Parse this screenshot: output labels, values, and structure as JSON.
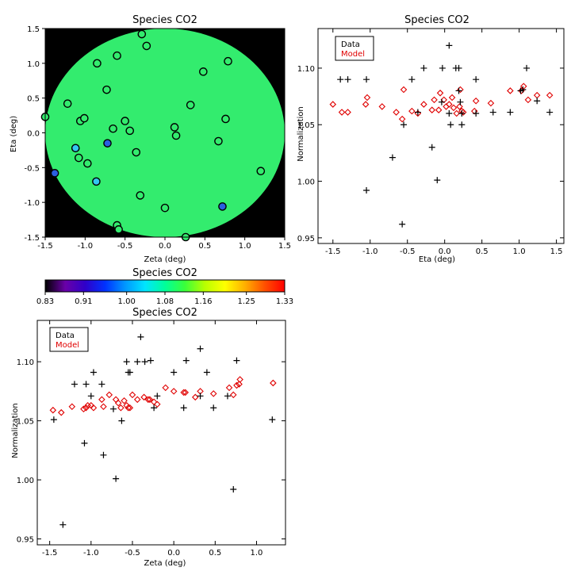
{
  "figure": {
    "title_map": "Species CO2",
    "title_eta": "Species CO2",
    "title_colorbar": "Species CO2",
    "title_zeta": "Species CO2",
    "legend_data": "Data",
    "legend_model": "Model",
    "model_color": "#e00000",
    "data_color": "#000000"
  },
  "chart_data": [
    {
      "id": "map",
      "type": "scatter",
      "title": "Species CO2",
      "xlabel": "Zeta (deg)",
      "ylabel": "Eta (deg)",
      "xlim": [
        -1.5,
        1.5
      ],
      "ylim": [
        -1.5,
        1.5
      ],
      "xticks": [
        "-1.5",
        "-1.0",
        "-0.5",
        "0.0",
        "0.5",
        "1.0",
        "1.5"
      ],
      "yticks": [
        "-1.5",
        "-1.0",
        "-0.5",
        "0.0",
        "0.5",
        "1.0",
        "1.5"
      ],
      "background": "#000000",
      "disk_color": "#33ec6e",
      "points": [
        {
          "x": -1.5,
          "y": 0.23,
          "c": "#33ec6e"
        },
        {
          "x": -1.38,
          "y": -0.58,
          "c": "#2a5fe0"
        },
        {
          "x": -1.22,
          "y": 0.42,
          "c": "#33ec6e"
        },
        {
          "x": -1.12,
          "y": -0.22,
          "c": "#33c7f0"
        },
        {
          "x": -1.08,
          "y": -0.36,
          "c": "#33ec6e"
        },
        {
          "x": -1.06,
          "y": 0.17,
          "c": "#33ec6e"
        },
        {
          "x": -1.01,
          "y": 0.21,
          "c": "#33ec6e"
        },
        {
          "x": -0.97,
          "y": -0.44,
          "c": "#33ec6e"
        },
        {
          "x": -0.85,
          "y": 1.0,
          "c": "#33ec6e"
        },
        {
          "x": -0.86,
          "y": -0.7,
          "c": "#33c7f0"
        },
        {
          "x": -0.73,
          "y": 0.62,
          "c": "#33ec6e"
        },
        {
          "x": -0.72,
          "y": -0.15,
          "c": "#2a5fe0"
        },
        {
          "x": -0.65,
          "y": 0.06,
          "c": "#33ec6e"
        },
        {
          "x": -0.6,
          "y": 1.11,
          "c": "#33ec6e"
        },
        {
          "x": -0.6,
          "y": -1.33,
          "c": "#33ec6e"
        },
        {
          "x": -0.58,
          "y": -1.39,
          "c": "#33ec6e"
        },
        {
          "x": -0.5,
          "y": 0.17,
          "c": "#33ec6e"
        },
        {
          "x": -0.44,
          "y": 0.03,
          "c": "#33ec6e"
        },
        {
          "x": -0.36,
          "y": -0.28,
          "c": "#33ec6e"
        },
        {
          "x": -0.29,
          "y": 1.42,
          "c": "#33ec6e"
        },
        {
          "x": -0.23,
          "y": 1.25,
          "c": "#33ec6e"
        },
        {
          "x": -0.31,
          "y": -0.9,
          "c": "#33ec6e"
        },
        {
          "x": 0.0,
          "y": -1.08,
          "c": "#33ec6e"
        },
        {
          "x": 0.12,
          "y": 0.08,
          "c": "#33ec6e"
        },
        {
          "x": 0.14,
          "y": -0.04,
          "c": "#33ec6e"
        },
        {
          "x": 0.32,
          "y": 0.4,
          "c": "#33ec6e"
        },
        {
          "x": 0.26,
          "y": -1.5,
          "c": "#33ec6e"
        },
        {
          "x": 0.48,
          "y": 0.88,
          "c": "#33ec6e"
        },
        {
          "x": 0.67,
          "y": -0.12,
          "c": "#33ec6e"
        },
        {
          "x": 0.72,
          "y": -1.06,
          "c": "#2a5fe0"
        },
        {
          "x": 0.76,
          "y": 0.2,
          "c": "#33ec6e"
        },
        {
          "x": 0.79,
          "y": 1.03,
          "c": "#33ec6e"
        },
        {
          "x": 1.2,
          "y": -0.55,
          "c": "#33ec6e"
        }
      ]
    },
    {
      "id": "eta",
      "type": "scatter",
      "title": "Species CO2",
      "xlabel": "Eta (deg)",
      "ylabel": "Normalization",
      "xlim": [
        -1.7,
        1.6
      ],
      "ylim": [
        0.945,
        1.135
      ],
      "xticks": [
        -1.5,
        -1.0,
        -0.5,
        0.0,
        0.5,
        1.0,
        1.5
      ],
      "yticks": [
        0.95,
        1.0,
        1.05,
        1.1
      ],
      "legend": "top-left",
      "data": [
        [
          -1.4,
          1.09
        ],
        [
          -1.3,
          1.09
        ],
        [
          -1.05,
          1.09
        ],
        [
          -1.05,
          0.992
        ],
        [
          -0.7,
          1.021
        ],
        [
          -0.57,
          0.962
        ],
        [
          -0.55,
          1.05
        ],
        [
          -0.44,
          1.09
        ],
        [
          -0.36,
          1.061
        ],
        [
          -0.28,
          1.1
        ],
        [
          -0.17,
          1.03
        ],
        [
          -0.1,
          1.001
        ],
        [
          -0.04,
          1.07
        ],
        [
          -0.03,
          1.1
        ],
        [
          0.06,
          1.12
        ],
        [
          0.06,
          1.06
        ],
        [
          0.08,
          1.05
        ],
        [
          0.15,
          1.1
        ],
        [
          0.19,
          1.1
        ],
        [
          0.19,
          1.08
        ],
        [
          0.21,
          1.07
        ],
        [
          0.23,
          1.05
        ],
        [
          0.23,
          1.06
        ],
        [
          0.42,
          1.06
        ],
        [
          0.42,
          1.09
        ],
        [
          0.65,
          1.061
        ],
        [
          0.88,
          1.061
        ],
        [
          1.02,
          1.08
        ],
        [
          1.05,
          1.081
        ],
        [
          1.1,
          1.1
        ],
        [
          1.24,
          1.071
        ],
        [
          1.41,
          1.061
        ]
      ],
      "model": [
        [
          -1.5,
          1.068
        ],
        [
          -1.38,
          1.061
        ],
        [
          -1.3,
          1.061
        ],
        [
          -1.06,
          1.068
        ],
        [
          -1.04,
          1.074
        ],
        [
          -0.84,
          1.066
        ],
        [
          -0.65,
          1.061
        ],
        [
          -0.57,
          1.055
        ],
        [
          -0.55,
          1.081
        ],
        [
          -0.44,
          1.062
        ],
        [
          -0.36,
          1.06
        ],
        [
          -0.28,
          1.068
        ],
        [
          -0.17,
          1.063
        ],
        [
          -0.14,
          1.072
        ],
        [
          -0.08,
          1.063
        ],
        [
          -0.06,
          1.078
        ],
        [
          -0.01,
          1.072
        ],
        [
          0.02,
          1.066
        ],
        [
          0.06,
          1.068
        ],
        [
          0.1,
          1.074
        ],
        [
          0.12,
          1.065
        ],
        [
          0.16,
          1.06
        ],
        [
          0.2,
          1.066
        ],
        [
          0.21,
          1.081
        ],
        [
          0.23,
          1.062
        ],
        [
          0.25,
          1.061
        ],
        [
          0.4,
          1.062
        ],
        [
          0.42,
          1.071
        ],
        [
          0.62,
          1.069
        ],
        [
          0.88,
          1.08
        ],
        [
          1.03,
          1.08
        ],
        [
          1.06,
          1.084
        ],
        [
          1.12,
          1.072
        ],
        [
          1.24,
          1.076
        ],
        [
          1.41,
          1.076
        ]
      ]
    },
    {
      "id": "colorbar",
      "type": "heatmap",
      "title": "Species CO2",
      "range": [
        0.83,
        1.33
      ],
      "ticks": [
        "0.83",
        "0.91",
        "1.00",
        "1.08",
        "1.16",
        "1.25",
        "1.33"
      ],
      "colormap": [
        "#000000",
        "#6a00a8",
        "#2f00c9",
        "#0032ff",
        "#0096ff",
        "#00e5ff",
        "#00ff9a",
        "#3aff3a",
        "#b8ff00",
        "#ffff00",
        "#ffb000",
        "#ff5000",
        "#ff0000"
      ]
    },
    {
      "id": "zeta",
      "type": "scatter",
      "title": "Species CO2",
      "xlabel": "Zeta (deg)",
      "ylabel": "Normalization",
      "xlim": [
        -1.65,
        1.35
      ],
      "ylim": [
        0.945,
        1.135
      ],
      "xticks": [
        -1.5,
        -1.0,
        -0.5,
        0.0,
        0.5,
        1.0
      ],
      "yticks": [
        0.95,
        1.0,
        1.05,
        1.1
      ],
      "legend": "top-left",
      "data": [
        [
          -1.45,
          1.051
        ],
        [
          -1.34,
          0.962
        ],
        [
          -1.2,
          1.081
        ],
        [
          -1.08,
          1.031
        ],
        [
          -1.06,
          1.081
        ],
        [
          -1.0,
          1.071
        ],
        [
          -0.97,
          1.091
        ],
        [
          -0.87,
          1.081
        ],
        [
          -0.85,
          1.021
        ],
        [
          -0.73,
          1.06
        ],
        [
          -0.7,
          1.001
        ],
        [
          -0.63,
          1.05
        ],
        [
          -0.57,
          1.1
        ],
        [
          -0.55,
          1.091
        ],
        [
          -0.53,
          1.091
        ],
        [
          -0.44,
          1.1
        ],
        [
          -0.4,
          1.121
        ],
        [
          -0.35,
          1.1
        ],
        [
          -0.28,
          1.101
        ],
        [
          -0.24,
          1.061
        ],
        [
          -0.2,
          1.071
        ],
        [
          0.0,
          1.091
        ],
        [
          0.12,
          1.061
        ],
        [
          0.15,
          1.101
        ],
        [
          0.32,
          1.111
        ],
        [
          0.32,
          1.071
        ],
        [
          0.4,
          1.091
        ],
        [
          0.48,
          1.061
        ],
        [
          0.65,
          1.071
        ],
        [
          0.72,
          0.992
        ],
        [
          0.76,
          1.101
        ],
        [
          1.19,
          1.051
        ]
      ],
      "model": [
        [
          -1.46,
          1.059
        ],
        [
          -1.36,
          1.057
        ],
        [
          -1.23,
          1.062
        ],
        [
          -1.09,
          1.06
        ],
        [
          -1.06,
          1.061
        ],
        [
          -1.04,
          1.063
        ],
        [
          -1.0,
          1.063
        ],
        [
          -0.97,
          1.061
        ],
        [
          -0.87,
          1.068
        ],
        [
          -0.85,
          1.062
        ],
        [
          -0.78,
          1.072
        ],
        [
          -0.7,
          1.068
        ],
        [
          -0.67,
          1.065
        ],
        [
          -0.64,
          1.061
        ],
        [
          -0.6,
          1.067
        ],
        [
          -0.57,
          1.063
        ],
        [
          -0.55,
          1.061
        ],
        [
          -0.53,
          1.061
        ],
        [
          -0.5,
          1.072
        ],
        [
          -0.44,
          1.068
        ],
        [
          -0.36,
          1.07
        ],
        [
          -0.31,
          1.068
        ],
        [
          -0.29,
          1.068
        ],
        [
          -0.24,
          1.066
        ],
        [
          -0.2,
          1.064
        ],
        [
          -0.1,
          1.078
        ],
        [
          0.0,
          1.075
        ],
        [
          0.12,
          1.074
        ],
        [
          0.14,
          1.074
        ],
        [
          0.26,
          1.07
        ],
        [
          0.32,
          1.075
        ],
        [
          0.48,
          1.073
        ],
        [
          0.67,
          1.078
        ],
        [
          0.72,
          1.072
        ],
        [
          0.76,
          1.08
        ],
        [
          0.79,
          1.081
        ],
        [
          0.8,
          1.085
        ],
        [
          1.2,
          1.082
        ]
      ]
    }
  ]
}
